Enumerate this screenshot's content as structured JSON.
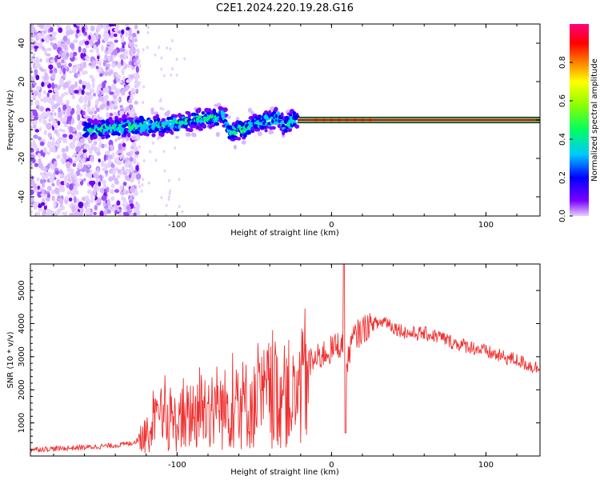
{
  "figure": {
    "title": "C2E1.2024.220.19.28.G16"
  },
  "chart_data": [
    {
      "type": "heatmap",
      "title": "C2E1.2024.220.19.28.G16",
      "xlabel": "Height of straight line (km)",
      "ylabel": "Frequency (Hz)",
      "xlim": [
        -195,
        135
      ],
      "ylim": [
        -50,
        50
      ],
      "x_ticks": [
        -100,
        0,
        100
      ],
      "y_ticks": [
        -40,
        -20,
        0,
        20,
        40
      ],
      "colorbar": {
        "label": "Normalized spectral amplitude",
        "range": [
          0,
          1
        ],
        "ticks": [
          0.0,
          0.2,
          0.4,
          0.6,
          0.8
        ],
        "colormap": [
          "#e8d0ff",
          "#7a00ff",
          "#0000ff",
          "#00c8ff",
          "#00ff60",
          "#90ff00",
          "#ffff00",
          "#ff8000",
          "#ff0000",
          "#ff0080"
        ]
      },
      "ridge": {
        "x": [
          -155,
          -140,
          -120,
          -100,
          -80,
          -70,
          -65,
          -55,
          -45,
          -35,
          -30,
          -25,
          -20,
          -10,
          0,
          10,
          20,
          40,
          60,
          80,
          100,
          120,
          135
        ],
        "y": [
          -5,
          -4,
          -3,
          -2,
          1,
          2,
          -6,
          -4,
          -1,
          1,
          -3,
          0,
          -1,
          -1,
          0,
          0,
          0,
          0,
          0,
          0,
          0,
          0,
          0
        ]
      }
    },
    {
      "type": "line",
      "xlabel": "Height of straight line (km)",
      "ylabel": "SNR (10 * v/v)",
      "xlim": [
        -195,
        135
      ],
      "ylim": [
        0,
        5800
      ],
      "x_ticks": [
        -100,
        0,
        100
      ],
      "y_ticks": [
        1000,
        2000,
        3000,
        4000,
        5000
      ],
      "color": "#f03030",
      "series": [
        {
          "x": [
            -195,
            -180,
            -160,
            -140,
            -130,
            -120,
            -115,
            -110,
            -100,
            -90,
            -80,
            -70,
            -60,
            -50,
            -45,
            -40,
            -35,
            -30,
            -25,
            -20,
            -15,
            -10,
            -5,
            0,
            5,
            8,
            10,
            12,
            15,
            20,
            25,
            30,
            35,
            40,
            45,
            50,
            60,
            70,
            80,
            90,
            100,
            110,
            120,
            130,
            135
          ],
          "y": [
            200,
            220,
            260,
            320,
            380,
            600,
            900,
            1100,
            1000,
            1300,
            1500,
            1400,
            1600,
            1500,
            1700,
            1900,
            1800,
            2000,
            1700,
            1900,
            2800,
            2900,
            3100,
            3200,
            3400,
            3200,
            2600,
            3300,
            3600,
            3800,
            4000,
            4000,
            4100,
            3900,
            3800,
            3700,
            3700,
            3600,
            3400,
            3300,
            3150,
            3000,
            2900,
            2700,
            2650
          ]
        }
      ]
    }
  ]
}
